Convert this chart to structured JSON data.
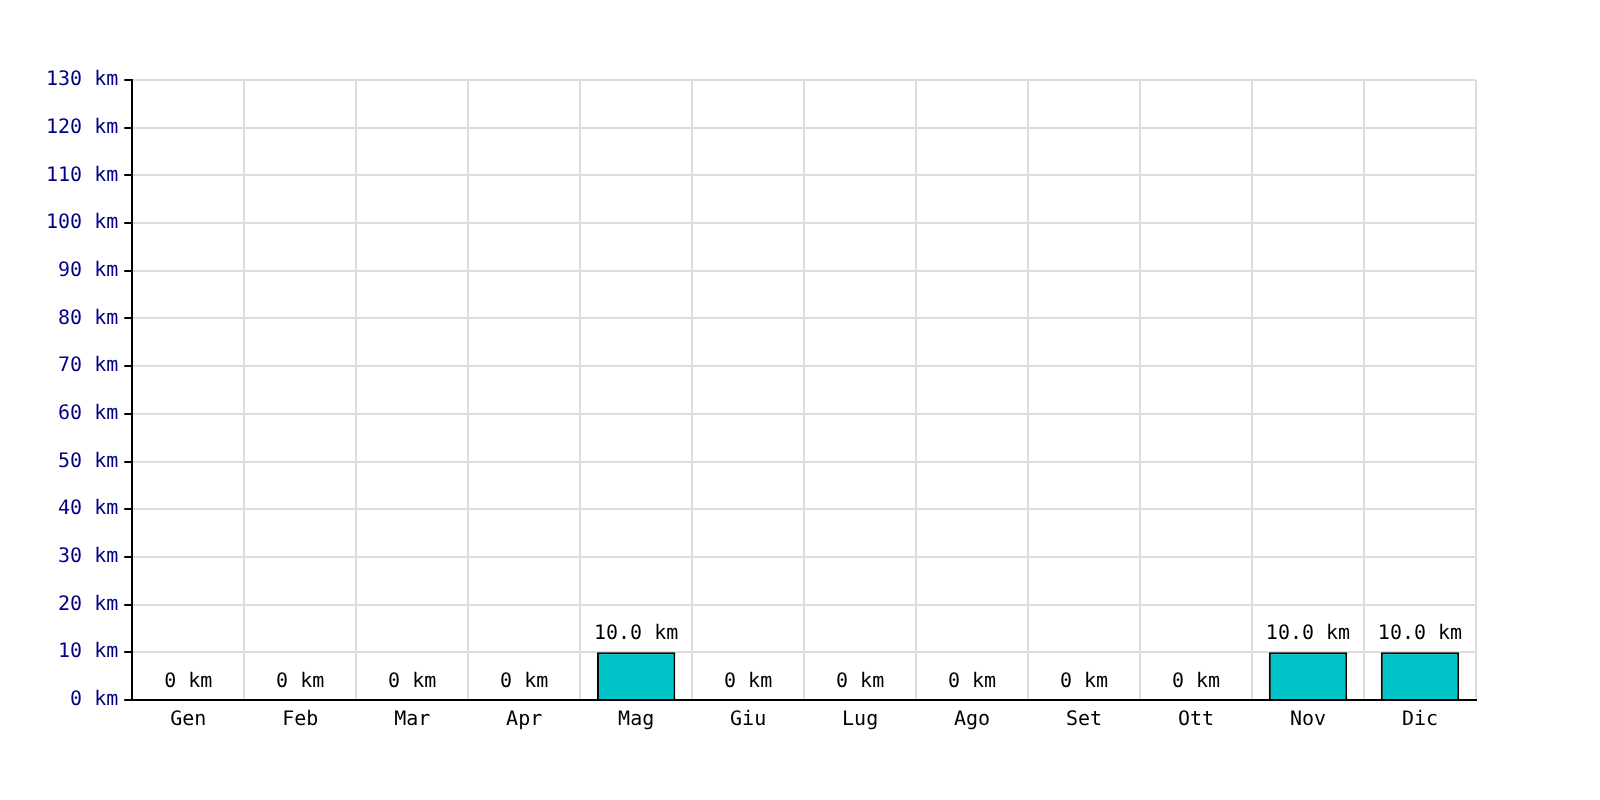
{
  "chart_data": {
    "type": "bar",
    "categories": [
      "Gen",
      "Feb",
      "Mar",
      "Apr",
      "Mag",
      "Giu",
      "Lug",
      "Ago",
      "Set",
      "Ott",
      "Nov",
      "Dic"
    ],
    "values": [
      0,
      0,
      0,
      0,
      10,
      0,
      0,
      0,
      0,
      0,
      10,
      10
    ],
    "value_labels": [
      "0 km",
      "0 km",
      "0 km",
      "0 km",
      "10.0 km",
      "0 km",
      "0 km",
      "0 km",
      "0 km",
      "0 km",
      "10.0 km",
      "10.0 km"
    ],
    "color": "#00c4c8",
    "ylim": [
      0,
      130
    ],
    "yticks": [
      {
        "value": 0,
        "label": "0 km"
      },
      {
        "value": 10,
        "label": "10 km"
      },
      {
        "value": 20,
        "label": "20 km"
      },
      {
        "value": 30,
        "label": "30 km"
      },
      {
        "value": 40,
        "label": "40 km"
      },
      {
        "value": 50,
        "label": "50 km"
      },
      {
        "value": 60,
        "label": "60 km"
      },
      {
        "value": 70,
        "label": "70 km"
      },
      {
        "value": 80,
        "label": "80 km"
      },
      {
        "value": 90,
        "label": "90 km"
      },
      {
        "value": 100,
        "label": "100 km"
      },
      {
        "value": 110,
        "label": "110 km"
      },
      {
        "value": 120,
        "label": "120 km"
      },
      {
        "value": 130,
        "label": "130 km"
      }
    ],
    "grid": true
  }
}
